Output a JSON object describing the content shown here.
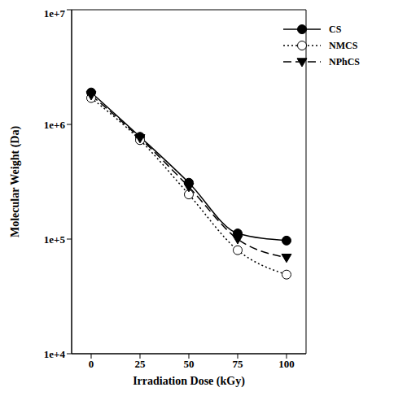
{
  "chart_data": {
    "type": "line",
    "x_label": "Irradiation Dose (kGy)",
    "y_label": "Molecular Weight (Da)",
    "x": [
      0,
      25,
      50,
      75,
      100
    ],
    "series": [
      {
        "name": "CS",
        "color": "#000000",
        "marker": "circle",
        "line_style": "solid",
        "values": [
          1900000,
          780000,
          310000,
          112000,
          97000
        ]
      },
      {
        "name": "NMCS",
        "color": "#000000",
        "marker": "open_circle",
        "line_style": "dotted",
        "values": [
          1700000,
          730000,
          245000,
          80000,
          49000
        ]
      },
      {
        "name": "NPhCS",
        "color": "#000000",
        "marker": "triangle_down",
        "line_style": "dashed",
        "values": [
          1800000,
          760000,
          285000,
          100000,
          69000
        ]
      }
    ],
    "xlim": [
      -10,
      110
    ],
    "xticks": [
      0,
      25,
      50,
      75,
      100
    ],
    "ylim": [
      10000,
      10000000
    ],
    "yticks": [
      {
        "value": 10000,
        "label": "1e+4"
      },
      {
        "value": 100000,
        "label": "1e+5"
      },
      {
        "value": 1000000,
        "label": "1e+6"
      },
      {
        "value": 10000000,
        "label": "1e+7"
      }
    ],
    "log": "y",
    "grid": false,
    "legend": "top-right"
  }
}
